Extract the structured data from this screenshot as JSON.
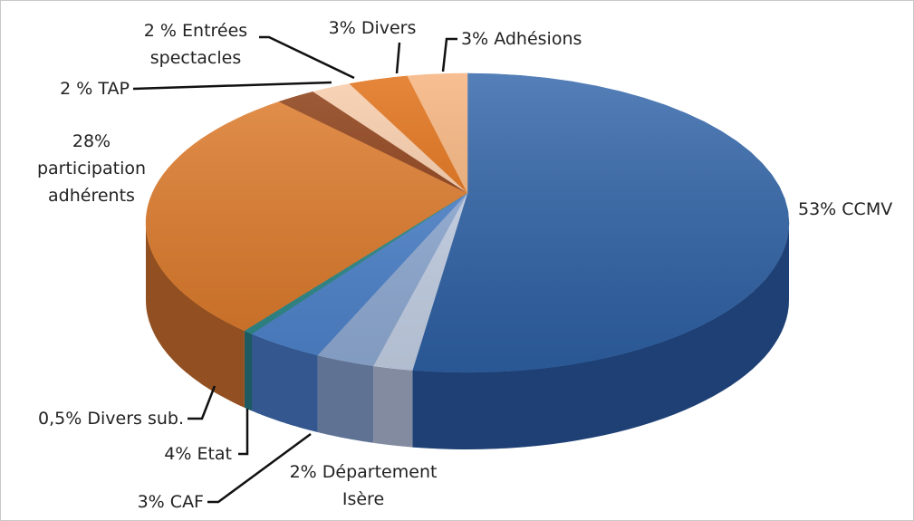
{
  "chart_data": {
    "type": "pie",
    "categories": [
      "CCMV",
      "Département Isère",
      "CAF",
      "Etat",
      "Divers sub.",
      "participation adhérents",
      "TAP",
      "Entrées spectacles",
      "Divers",
      "Adhésions"
    ],
    "values": [
      53,
      2,
      3,
      4,
      0.5,
      28,
      2,
      2,
      3,
      3
    ],
    "value_labels": [
      "53%",
      "2%",
      "3%",
      "4%",
      "0,5%",
      "28%",
      "2 %",
      "2 %",
      "3%",
      "3%"
    ],
    "colors": [
      "#2f63a8",
      "#c9d6ec",
      "#93afd9",
      "#4f86d0",
      "#2e8b8b",
      "#e07b2a",
      "#8b3a10",
      "#f8cba8",
      "#e06c10",
      "#f5b17a"
    ]
  }
}
